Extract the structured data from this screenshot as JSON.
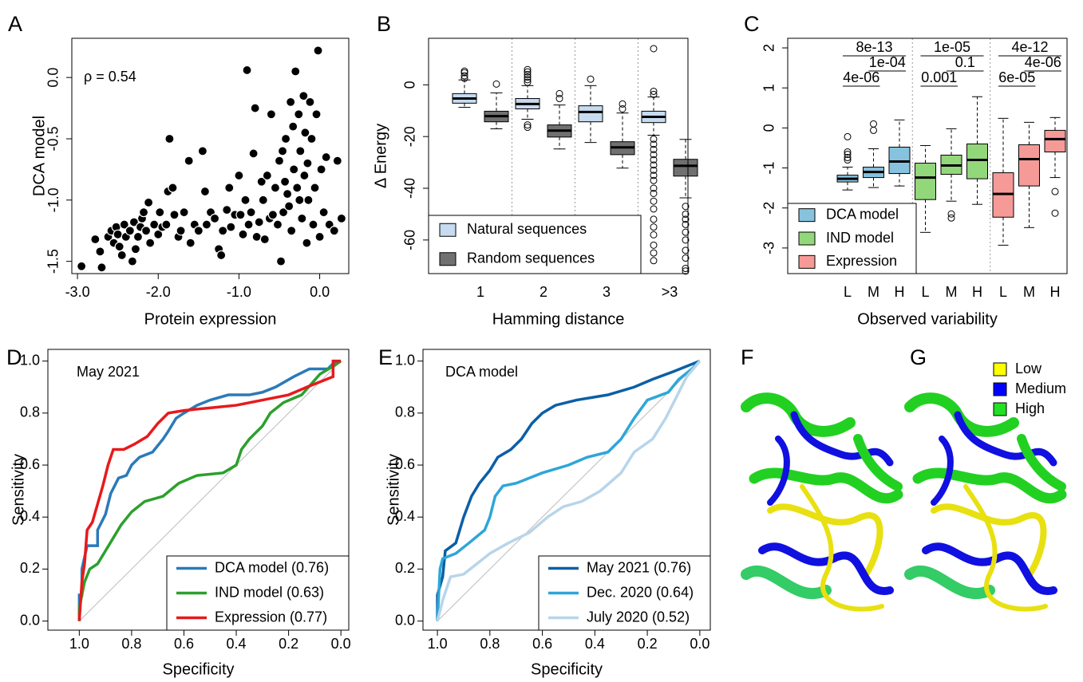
{
  "chart_data": [
    {
      "type": "scatter",
      "panel_label": "A",
      "annotation": "ρ = 0.54",
      "x_label": "Protein expression",
      "y_label": "DCA model",
      "color": "#000000",
      "xlim": [
        -3.07,
        0.36
      ],
      "ylim": [
        -1.6,
        0.32
      ],
      "xticks": [
        {
          "value": -3,
          "label": "-3.0"
        },
        {
          "value": -2,
          "label": "-2.0"
        },
        {
          "value": -1,
          "label": "-1.0"
        },
        {
          "value": 0,
          "label": "0.0"
        }
      ],
      "yticks": [
        -1.5,
        {
          "value": -1,
          "label": "-1.0"
        },
        -0.5,
        {
          "value": 0,
          "label": "0.0"
        }
      ],
      "x": [
        -2.95,
        -2.78,
        -2.72,
        -2.7,
        -2.62,
        -2.58,
        -2.55,
        -2.52,
        -2.5,
        -2.48,
        -2.45,
        -2.42,
        -2.4,
        -2.35,
        -2.32,
        -2.3,
        -2.28,
        -2.25,
        -2.22,
        -2.2,
        -2.18,
        -2.15,
        -2.12,
        -2.1,
        -2.05,
        -2.0,
        -1.98,
        -1.95,
        -1.9,
        -1.88,
        -1.86,
        -1.82,
        -1.8,
        -1.75,
        -1.72,
        -1.68,
        -1.62,
        -1.6,
        -1.55,
        -1.5,
        -1.45,
        -1.42,
        -1.4,
        -1.35,
        -1.3,
        -1.25,
        -1.22,
        -1.2,
        -1.15,
        -1.12,
        -1.1,
        -1.05,
        -1.0,
        -0.98,
        -0.95,
        -0.92,
        -0.9,
        -0.88,
        -0.85,
        -0.82,
        -0.8,
        -0.78,
        -0.75,
        -0.72,
        -0.7,
        -0.68,
        -0.65,
        -0.62,
        -0.6,
        -0.58,
        -0.55,
        -0.52,
        -0.5,
        -0.48,
        -0.46,
        -0.45,
        -0.43,
        -0.42,
        -0.4,
        -0.38,
        -0.36,
        -0.35,
        -0.33,
        -0.32,
        -0.3,
        -0.28,
        -0.26,
        -0.25,
        -0.24,
        -0.22,
        -0.2,
        -0.19,
        -0.18,
        -0.16,
        -0.15,
        -0.14,
        -0.12,
        -0.1,
        -0.08,
        -0.06,
        -0.04,
        -0.02,
        0.0,
        0.02,
        0.05,
        0.08,
        0.12,
        0.18,
        0.22,
        0.27
      ],
      "values": [
        -1.54,
        -1.32,
        -1.42,
        -1.55,
        -1.3,
        -1.25,
        -1.35,
        -1.22,
        -1.28,
        -1.38,
        -1.45,
        -1.2,
        -1.3,
        -1.25,
        -1.5,
        -1.18,
        -1.4,
        -1.3,
        -1.22,
        -1.15,
        -1.1,
        -1.25,
        -1.02,
        -1.35,
        -1.2,
        -1.28,
        -1.1,
        -1.22,
        -1.2,
        -0.93,
        -0.5,
        -0.9,
        -1.12,
        -1.3,
        -1.25,
        -1.1,
        -0.68,
        -1.35,
        -1.2,
        -1.25,
        -0.6,
        -0.93,
        -1.2,
        -1.1,
        -1.15,
        -1.4,
        -1.45,
        -1.25,
        -1.08,
        -0.9,
        -1.22,
        -1.12,
        -0.8,
        -1.12,
        -1.28,
        -1.0,
        0.06,
        -1.2,
        -1.1,
        -0.62,
        -0.25,
        -1.3,
        -1.18,
        -0.85,
        -1.0,
        -1.32,
        -0.8,
        -1.15,
        -0.3,
        -1.12,
        -0.9,
        -1.2,
        -0.68,
        -1.5,
        -0.6,
        -1.1,
        -0.85,
        -0.5,
        -0.95,
        -1.05,
        -0.2,
        -1.25,
        -0.4,
        -0.75,
        0.05,
        -0.9,
        -0.3,
        -1.0,
        -0.6,
        -1.15,
        -0.15,
        -0.8,
        -0.45,
        -1.35,
        -0.7,
        -1.0,
        -0.2,
        -0.5,
        -1.2,
        -0.9,
        -0.3,
        0.22,
        -1.3,
        -0.75,
        -1.1,
        -0.65,
        -1.2,
        -1.25,
        -0.68,
        -1.15
      ]
    },
    {
      "type": "box",
      "panel_label": "B",
      "x_label": "Hamming distance",
      "y_label": "Δ Energy",
      "legend": "bottom-left",
      "ylim": [
        -73,
        18
      ],
      "yticks": [
        0,
        -20,
        -40,
        -60
      ],
      "categories": [
        "1",
        "2",
        "3",
        ">3"
      ],
      "series": [
        {
          "name": "Natural sequences",
          "color": "#c6dbef",
          "boxes": [
            {
              "low": -8.7,
              "q1": -7.1,
              "median": -5.3,
              "q3": -3.4,
              "high": 1.9,
              "outliers": [
                2.5,
                3.5,
                4.7,
                5.3
              ]
            },
            {
              "low": -13.3,
              "q1": -9.3,
              "median": -7.4,
              "q3": -5.3,
              "high": -0.3,
              "outliers": [
                1.0,
                2.0,
                3.0,
                4.0,
                5.0,
                5.9,
                -15.5,
                -16.4
              ]
            },
            {
              "low": -22.3,
              "q1": -14.3,
              "median": -10.5,
              "q3": -8.1,
              "high": -0.3,
              "outliers": [
                2.2
              ]
            },
            {
              "low": -19.5,
              "q1": -14.6,
              "median": -12.4,
              "q3": -10.2,
              "high": -4.7,
              "outliers": [
                14,
                -2.5,
                -3.7,
                -21,
                -23,
                -25,
                -27,
                -29,
                -31,
                -33,
                -35,
                -37,
                -40,
                -42,
                -45,
                -48,
                -52,
                -55,
                -58,
                -62,
                -65,
                -68
              ]
            }
          ]
        },
        {
          "name": "Random sequences",
          "color": "#707070",
          "boxes": [
            {
              "low": -17,
              "q1": -14.3,
              "median": -12.1,
              "q3": -10.2,
              "high": -3.1,
              "outliers": [
                0.3
              ]
            },
            {
              "low": -24.8,
              "q1": -20.2,
              "median": -17.7,
              "q3": -15.5,
              "high": -7.8,
              "outliers": [
                -5.3,
                -3.4
              ]
            },
            {
              "low": -32.2,
              "q1": -27,
              "median": -24.2,
              "q3": -22,
              "high": -10.9,
              "outliers": [
                -7.4,
                -9.3
              ]
            },
            {
              "low": -43.7,
              "q1": -35.3,
              "median": -31.3,
              "q3": -28.8,
              "high": -21.1,
              "outliers": [
                -47,
                -50,
                -52,
                -54,
                -57,
                -60,
                -64,
                -67,
                -71,
                -72
              ]
            }
          ]
        }
      ]
    },
    {
      "type": "box",
      "panel_label": "C",
      "x_label": "Observed variability",
      "legend": "bottom-left",
      "ylim": [
        -3.64,
        2.24
      ],
      "yticks": [
        2,
        1,
        0,
        -1,
        -2,
        -3
      ],
      "categories": [
        "L",
        "M",
        "H",
        "L",
        "M",
        "H",
        "L",
        "M",
        "H"
      ],
      "annotations": [
        "8e-13",
        "1e-04",
        "4e-06",
        "1e-05",
        "0.1",
        "0.001",
        "4e-12",
        "4e-06",
        "6e-05"
      ],
      "series": [
        {
          "name": "DCA model",
          "color": "#87c3df",
          "boxes": [
            {
              "low": -1.55,
              "q1": -1.35,
              "median": -1.27,
              "q3": -1.18,
              "high": -0.98,
              "outliers": [
                -0.22,
                -0.6,
                -0.66,
                -0.74,
                -0.8
              ]
            },
            {
              "low": -1.49,
              "q1": -1.24,
              "median": -1.1,
              "q3": -0.98,
              "high": -0.52,
              "outliers": [
                0.1,
                -0.06
              ]
            },
            {
              "low": -1.45,
              "q1": -1.14,
              "median": -0.84,
              "q3": -0.48,
              "high": 0.2,
              "outliers": []
            },
            null,
            null,
            null,
            null,
            null,
            null
          ]
        },
        {
          "name": "IND model",
          "color": "#93d77b",
          "boxes": [
            null,
            null,
            null,
            {
              "low": -2.61,
              "q1": -1.79,
              "median": -1.24,
              "q3": -0.88,
              "high": -0.44,
              "outliers": []
            },
            {
              "low": -1.83,
              "q1": -1.16,
              "median": -0.94,
              "q3": -0.68,
              "high": -0.02,
              "outliers": [
                -2.15,
                -2.25
              ]
            },
            {
              "low": -1.91,
              "q1": -1.27,
              "median": -0.8,
              "q3": -0.4,
              "high": 0.78,
              "outliers": []
            },
            null,
            null,
            null
          ]
        },
        {
          "name": "Expression",
          "color": "#f69a98",
          "boxes": [
            null,
            null,
            null,
            null,
            null,
            null,
            {
              "low": -2.93,
              "q1": -2.23,
              "median": -1.65,
              "q3": -1.12,
              "high": 0.24,
              "outliers": []
            },
            {
              "low": -2.49,
              "q1": -1.45,
              "median": -0.78,
              "q3": -0.42,
              "high": 0.14,
              "outliers": []
            },
            {
              "low": -1.24,
              "q1": -0.6,
              "median": -0.28,
              "q3": -0.06,
              "high": 0.26,
              "outliers": [
                -1.59,
                -2.13
              ]
            }
          ]
        }
      ]
    },
    {
      "type": "line",
      "panel_label": "D",
      "annotation": "May 2021",
      "x_label": "Specificity",
      "y_label": "Sensitivity",
      "legend": "bottom-right",
      "xlim": [
        1.12,
        -0.03
      ],
      "ylim": [
        -0.035,
        1.045
      ],
      "xticks": [
        {
          "value": 1,
          "label": "1.0"
        },
        0.8,
        0.6,
        0.4,
        0.2,
        {
          "value": 0,
          "label": "0.0"
        }
      ],
      "yticks": [
        {
          "value": 0,
          "label": "0.0"
        },
        0.2,
        0.4,
        0.6,
        0.8,
        {
          "value": 1,
          "label": "1.0"
        }
      ],
      "series": [
        {
          "name": "DCA model (0.76)",
          "color": "#2a7ab9",
          "x": [
            1,
            1,
            0.99,
            0.99,
            0.97,
            0.93,
            0.93,
            0.9,
            0.88,
            0.85,
            0.82,
            0.8,
            0.77,
            0.72,
            0.68,
            0.66,
            0.63,
            0.6,
            0.55,
            0.5,
            0.43,
            0.35,
            0.3,
            0.25,
            0.18,
            0.12,
            0.05,
            0.03,
            0
          ],
          "values": [
            0,
            0.1,
            0.1,
            0.2,
            0.29,
            0.29,
            0.35,
            0.41,
            0.49,
            0.55,
            0.56,
            0.6,
            0.63,
            0.65,
            0.7,
            0.73,
            0.78,
            0.8,
            0.83,
            0.85,
            0.87,
            0.87,
            0.88,
            0.9,
            0.94,
            0.97,
            0.97,
            0.99,
            1
          ]
        },
        {
          "name": "IND model (0.63)",
          "color": "#2ca02c",
          "x": [
            1,
            1,
            0.98,
            0.96,
            0.93,
            0.9,
            0.87,
            0.84,
            0.8,
            0.75,
            0.68,
            0.62,
            0.55,
            0.45,
            0.4,
            0.38,
            0.35,
            0.3,
            0.27,
            0.22,
            0.15,
            0.08,
            0.03,
            0
          ],
          "values": [
            0,
            0.05,
            0.15,
            0.2,
            0.22,
            0.27,
            0.32,
            0.37,
            0.42,
            0.46,
            0.48,
            0.53,
            0.56,
            0.57,
            0.6,
            0.66,
            0.7,
            0.75,
            0.8,
            0.84,
            0.87,
            0.95,
            0.98,
            1
          ]
        },
        {
          "name": "Expression (0.77)",
          "color": "#e8191b",
          "x": [
            1,
            0.99,
            0.98,
            0.97,
            0.95,
            0.93,
            0.91,
            0.89,
            0.87,
            0.83,
            0.79,
            0.74,
            0.7,
            0.66,
            0.6,
            0.5,
            0.4,
            0.3,
            0.2,
            0.13,
            0.08,
            0.03,
            0.03,
            0
          ],
          "values": [
            0,
            0.15,
            0.22,
            0.35,
            0.38,
            0.45,
            0.52,
            0.6,
            0.66,
            0.66,
            0.68,
            0.71,
            0.76,
            0.8,
            0.81,
            0.82,
            0.83,
            0.85,
            0.87,
            0.9,
            0.92,
            0.94,
            1,
            1
          ]
        }
      ]
    },
    {
      "type": "line",
      "panel_label": "E",
      "annotation": "DCA model",
      "x_label": "Specificity",
      "y_label": "Sensitivity",
      "legend": "bottom-right",
      "xlim": [
        1.055,
        -0.04
      ],
      "ylim": [
        -0.035,
        1.045
      ],
      "xticks": [
        {
          "value": 1,
          "label": "1.0"
        },
        0.8,
        0.6,
        0.4,
        0.2,
        {
          "value": 0,
          "label": "0.0"
        }
      ],
      "yticks": [
        {
          "value": 0,
          "label": "0.0"
        },
        0.2,
        0.4,
        0.6,
        0.8,
        {
          "value": 1,
          "label": "1.0"
        }
      ],
      "series": [
        {
          "name": "May 2021 (0.76)",
          "color": "#0b5fa5",
          "x": [
            1,
            1,
            0.98,
            0.97,
            0.93,
            0.9,
            0.87,
            0.84,
            0.8,
            0.77,
            0.72,
            0.68,
            0.64,
            0.6,
            0.55,
            0.47,
            0.35,
            0.25,
            0.18,
            0.1,
            0.05,
            0
          ],
          "values": [
            0,
            0.1,
            0.17,
            0.27,
            0.3,
            0.4,
            0.48,
            0.53,
            0.58,
            0.63,
            0.66,
            0.7,
            0.76,
            0.8,
            0.83,
            0.85,
            0.87,
            0.9,
            0.93,
            0.96,
            0.98,
            1
          ]
        },
        {
          "name": "Dec. 2020 (0.64)",
          "color": "#2ea6d8",
          "x": [
            1,
            0.99,
            0.98,
            0.93,
            0.88,
            0.82,
            0.8,
            0.78,
            0.75,
            0.7,
            0.6,
            0.5,
            0.43,
            0.35,
            0.3,
            0.25,
            0.2,
            0.12,
            0.08,
            0.03,
            0
          ],
          "values": [
            0,
            0.2,
            0.24,
            0.26,
            0.3,
            0.35,
            0.4,
            0.48,
            0.52,
            0.53,
            0.57,
            0.6,
            0.63,
            0.65,
            0.7,
            0.78,
            0.85,
            0.88,
            0.93,
            0.97,
            1
          ]
        },
        {
          "name": "July 2020 (0.52)",
          "color": "#b8d5ea",
          "x": [
            1,
            0.98,
            0.95,
            0.9,
            0.85,
            0.8,
            0.73,
            0.65,
            0.58,
            0.52,
            0.45,
            0.38,
            0.3,
            0.25,
            0.18,
            0.13,
            0.08,
            0.05,
            0
          ],
          "values": [
            0,
            0.08,
            0.17,
            0.18,
            0.22,
            0.26,
            0.3,
            0.34,
            0.4,
            0.44,
            0.46,
            0.5,
            0.57,
            0.65,
            0.7,
            0.78,
            0.88,
            0.94,
            1
          ]
        }
      ]
    }
  ],
  "structure_figure": {
    "panel_labels": [
      "F",
      "G"
    ],
    "legend": [
      {
        "name": "Low",
        "color": "#ffff00"
      },
      {
        "name": "Medium",
        "color": "#0000ff"
      },
      {
        "name": "High",
        "color": "#22e022"
      }
    ]
  }
}
